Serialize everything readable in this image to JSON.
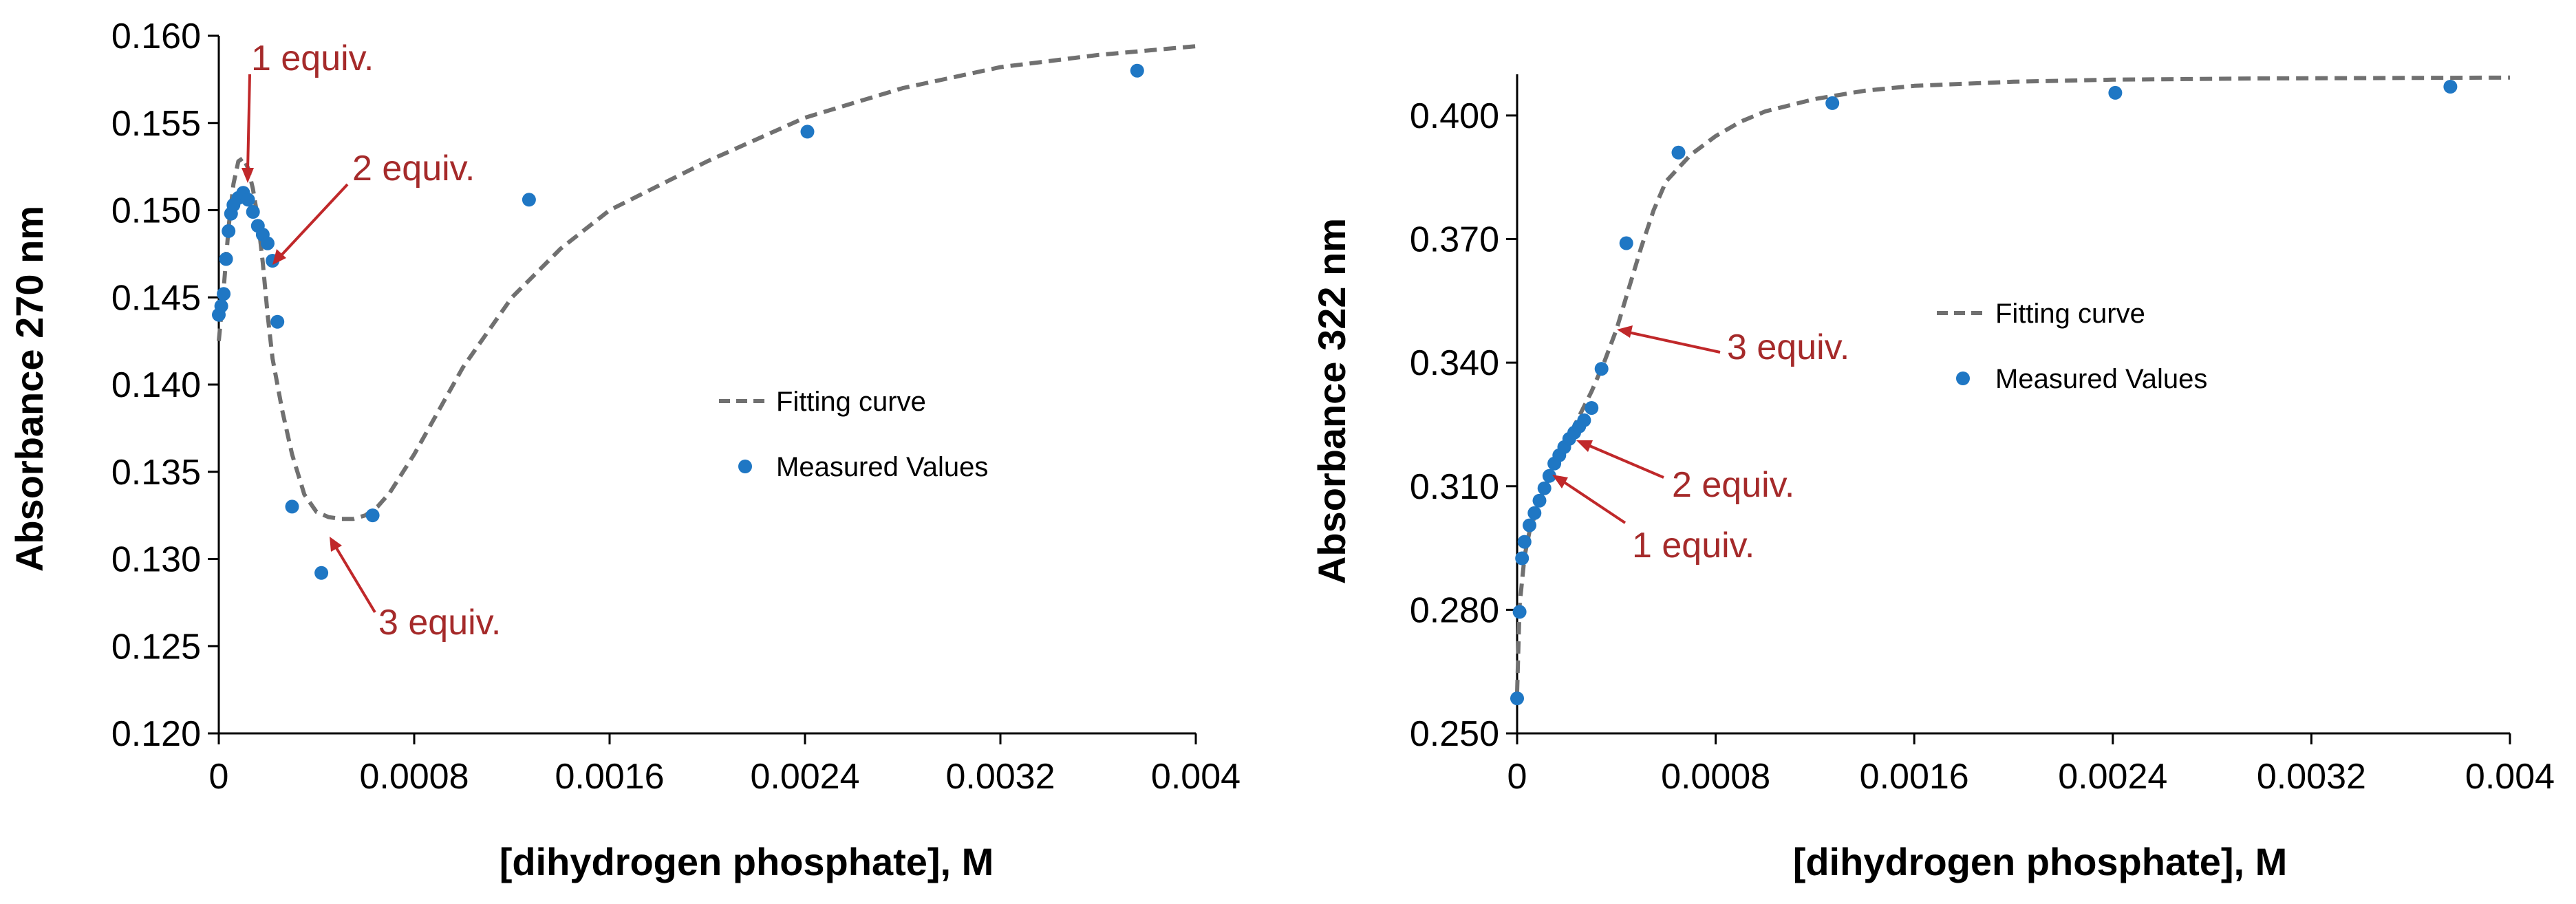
{
  "colors": {
    "point": "#1f77c4",
    "curve": "#707070",
    "annotation": "#a52a2a",
    "axis": "#000000"
  },
  "chart_data": [
    {
      "type": "scatter",
      "xlabel": "[dihydrogen phosphate], M",
      "ylabel": "Absorbance 270 nm",
      "xlim": [
        0,
        0.004
      ],
      "ylim": [
        0.12,
        0.16
      ],
      "xticks": [
        0,
        0.0008,
        0.0016,
        0.0024,
        0.0032,
        0.004
      ],
      "xtick_labels": [
        "0",
        "0.0008",
        "0.0016",
        "0.0024",
        "0.0032",
        "0.004"
      ],
      "yticks": [
        0.12,
        0.125,
        0.13,
        0.135,
        0.14,
        0.145,
        0.15,
        0.155,
        0.16
      ],
      "ytick_labels": [
        "0.120",
        "0.125",
        "0.130",
        "0.135",
        "0.140",
        "0.145",
        "0.150",
        "0.155",
        "0.160"
      ],
      "grid": false,
      "legend": {
        "position": "center-right",
        "entries": [
          "Fitting curve",
          "Measured Values"
        ]
      },
      "series": [
        {
          "name": "Measured Values",
          "style": "markers",
          "x": [
            0.0,
            1e-05,
            2e-05,
            3e-05,
            4e-05,
            5e-05,
            6e-05,
            8e-05,
            0.0001,
            0.00012,
            0.00014,
            0.00016,
            0.00018,
            0.0002,
            0.00022,
            0.00024,
            0.0003,
            0.00042,
            0.00063,
            0.00127,
            0.00241,
            0.00376
          ],
          "y": [
            0.144,
            0.1445,
            0.1452,
            0.1472,
            0.1488,
            0.1498,
            0.1503,
            0.1507,
            0.151,
            0.1506,
            0.1499,
            0.1491,
            0.1486,
            0.1481,
            0.1471,
            0.1436,
            0.133,
            0.1292,
            0.1325,
            0.1506,
            0.1545,
            0.158
          ]
        },
        {
          "name": "Fitting curve",
          "style": "dashed-line",
          "x": [
            0.0,
            2e-05,
            4e-05,
            6e-05,
            8e-05,
            0.0001,
            0.00012,
            0.00014,
            0.00016,
            0.00018,
            0.0002,
            0.00022,
            0.00024,
            0.00026,
            0.0003,
            0.00035,
            0.0004,
            0.00045,
            0.0005,
            0.00055,
            0.0006,
            0.00065,
            0.0007,
            0.0008,
            0.0009,
            0.001,
            0.0012,
            0.0014,
            0.0016,
            0.002,
            0.0024,
            0.0028,
            0.0032,
            0.0036,
            0.004
          ],
          "y": [
            0.1425,
            0.1455,
            0.149,
            0.1515,
            0.1528,
            0.153,
            0.1524,
            0.1512,
            0.1495,
            0.147,
            0.144,
            0.1415,
            0.14,
            0.1385,
            0.136,
            0.1337,
            0.1327,
            0.1324,
            0.1323,
            0.1323,
            0.1325,
            0.133,
            0.1338,
            0.136,
            0.1385,
            0.141,
            0.145,
            0.1478,
            0.15,
            0.1528,
            0.1553,
            0.157,
            0.1582,
            0.1589,
            0.1594
          ]
        }
      ],
      "annotations": [
        {
          "text": "1 equiv.",
          "x": 0.0001,
          "y": 0.1525
        },
        {
          "text": "2 equiv.",
          "x": 0.00022,
          "y": 0.1472
        },
        {
          "text": "3 equiv.",
          "x": 0.00045,
          "y": 0.1312
        }
      ]
    },
    {
      "type": "scatter",
      "xlabel": "[dihydrogen phosphate], M",
      "ylabel": "Absorbance 322 nm",
      "xlim": [
        0,
        0.004
      ],
      "ylim": [
        0.25,
        0.41
      ],
      "xticks": [
        0,
        0.0008,
        0.0016,
        0.0024,
        0.0032,
        0.004
      ],
      "xtick_labels": [
        "0",
        "0.0008",
        "0.0016",
        "0.0024",
        "0.0032",
        "0.004"
      ],
      "yticks": [
        0.25,
        0.28,
        0.31,
        0.34,
        0.37,
        0.4
      ],
      "ytick_labels": [
        "0.250",
        "0.280",
        "0.310",
        "0.340",
        "0.370",
        "0.400"
      ],
      "grid": false,
      "legend": {
        "position": "center-right",
        "entries": [
          "Fitting curve",
          "Measured Values"
        ]
      },
      "series": [
        {
          "name": "Measured Values",
          "style": "markers",
          "x": [
            0.0,
            1e-05,
            2e-05,
            3e-05,
            5e-05,
            7e-05,
            9e-05,
            0.00011,
            0.00013,
            0.00015,
            0.00017,
            0.00019,
            0.00021,
            0.00023,
            0.00025,
            0.00027,
            0.0003,
            0.00034,
            0.00044,
            0.00065,
            0.00127,
            0.00241,
            0.00376
          ],
          "y": [
            0.2585,
            0.2795,
            0.2925,
            0.2965,
            0.3005,
            0.3035,
            0.3065,
            0.3095,
            0.3125,
            0.3155,
            0.3175,
            0.3195,
            0.3215,
            0.323,
            0.3245,
            0.326,
            0.329,
            0.3385,
            0.369,
            0.391,
            0.403,
            0.4055,
            0.407
          ]
        },
        {
          "name": "Fitting curve",
          "style": "dashed-line",
          "x": [
            0.0,
            1e-05,
            3e-05,
            5e-05,
            0.0001,
            0.00015,
            0.0002,
            0.00025,
            0.0003,
            0.00035,
            0.0004,
            0.00045,
            0.0005,
            0.00055,
            0.0006,
            0.0007,
            0.0008,
            0.0009,
            0.001,
            0.0012,
            0.0014,
            0.0016,
            0.002,
            0.0024,
            0.003,
            0.0035,
            0.004
          ],
          "y": [
            0.26,
            0.281,
            0.293,
            0.299,
            0.308,
            0.315,
            0.321,
            0.327,
            0.333,
            0.34,
            0.348,
            0.358,
            0.368,
            0.377,
            0.384,
            0.3905,
            0.395,
            0.3985,
            0.401,
            0.404,
            0.406,
            0.4072,
            0.4082,
            0.4087,
            0.409,
            0.4091,
            0.4092
          ]
        }
      ],
      "annotations": [
        {
          "text": "1 equiv.",
          "x": 0.00013,
          "y": 0.313
        },
        {
          "text": "2 equiv.",
          "x": 0.00023,
          "y": 0.322
        },
        {
          "text": "3 equiv.",
          "x": 0.0004,
          "y": 0.3475
        }
      ]
    }
  ]
}
